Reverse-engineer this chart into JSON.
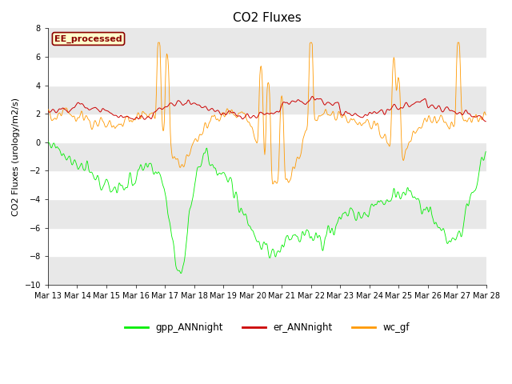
{
  "title": "CO2 Fluxes",
  "ylabel": "CO2 Fluxes (urology/m2/s)",
  "ylim": [
    -10,
    8
  ],
  "yticks": [
    -10,
    -8,
    -6,
    -4,
    -2,
    0,
    2,
    4,
    6,
    8
  ],
  "annotation_text": "EE_processed",
  "annotation_bg": "#ffffcc",
  "annotation_border": "#8b0000",
  "gpp_color": "#00ee00",
  "er_color": "#cc0000",
  "wc_color": "#ff9900",
  "bg_color": "#ffffff",
  "axes_bg": "#ffffff",
  "stripe_color": "#e8e8e8",
  "title_fontsize": 11,
  "axis_fontsize": 8,
  "tick_fontsize": 7,
  "legend_labels": [
    "gpp_ANNnight",
    "er_ANNnight",
    "wc_gf"
  ]
}
